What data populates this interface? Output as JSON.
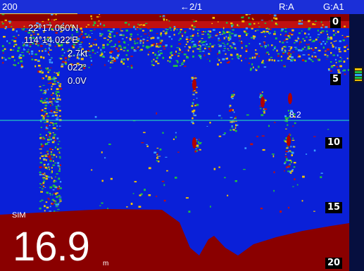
{
  "topbar": {
    "range": "200",
    "page_indicator": "2/1",
    "range_mode": "R:A",
    "gain_mode": "G:A1"
  },
  "icons": {
    "back_arrow": "arrow-left-icon",
    "gain_icon": "gain-scale-icon"
  },
  "position": {
    "latitude": "22°17.060'N",
    "longitude": "114°14.022'E"
  },
  "readouts": {
    "speed": "2.7kt",
    "heading": "022°",
    "voltage": "0.0V"
  },
  "depth_scale": [
    "0",
    "5",
    "10",
    "15",
    "20"
  ],
  "marker": {
    "value": "8.2"
  },
  "sim_label": "SIM",
  "depth": {
    "value": "16.9",
    "unit": "m"
  },
  "colors": {
    "background": "#0a20d8",
    "bottom_echo": "#8a0000",
    "strong_echo": "#c01010",
    "medium_echo": "#f5c400",
    "weak_echo": "#20c040",
    "marker_line": "#23c8c0",
    "range_underline": "#f2e04a"
  }
}
